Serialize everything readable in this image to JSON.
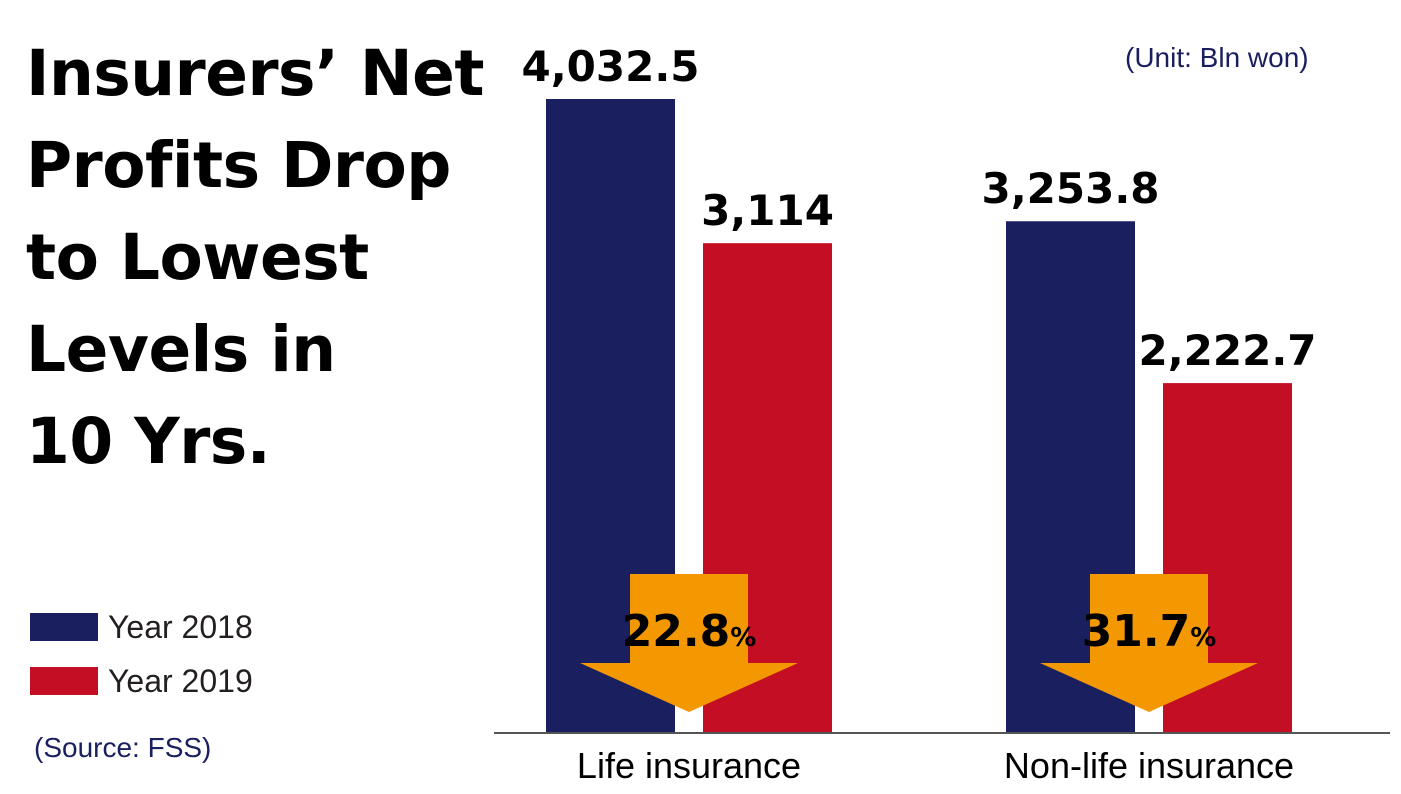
{
  "title": "Insurers’ Net Profits Drop to Lowest Levels in 10 Yrs.",
  "title_lines": [
    "Insurers’ Net",
    "Profits Drop",
    "to Lowest",
    "Levels in",
    "10 Yrs."
  ],
  "unit_note": "(Unit: Bln won)",
  "source_note": "(Source: FSS)",
  "colors": {
    "year2018": "#1a1f60",
    "year2019": "#c40e24",
    "arrow": "#f39800"
  },
  "chart_data": {
    "type": "bar",
    "categories": [
      "Life insurance",
      "Non-life insurance"
    ],
    "series": [
      {
        "name": "Year 2018",
        "values": [
          4032.5,
          3253.8
        ],
        "labels": [
          "4,032.5",
          "3,253.8"
        ]
      },
      {
        "name": "Year 2019",
        "values": [
          3114,
          2222.7
        ],
        "labels": [
          "3,114",
          "2,222.7"
        ]
      }
    ],
    "annotations": [
      {
        "category": "Life insurance",
        "text": "22.8",
        "unit": "%"
      },
      {
        "category": "Non-life insurance",
        "text": "31.7",
        "unit": "%"
      }
    ],
    "ylim": [
      0,
      4032.5
    ],
    "xlabel": "",
    "ylabel": "",
    "legend": "bottom-left"
  }
}
